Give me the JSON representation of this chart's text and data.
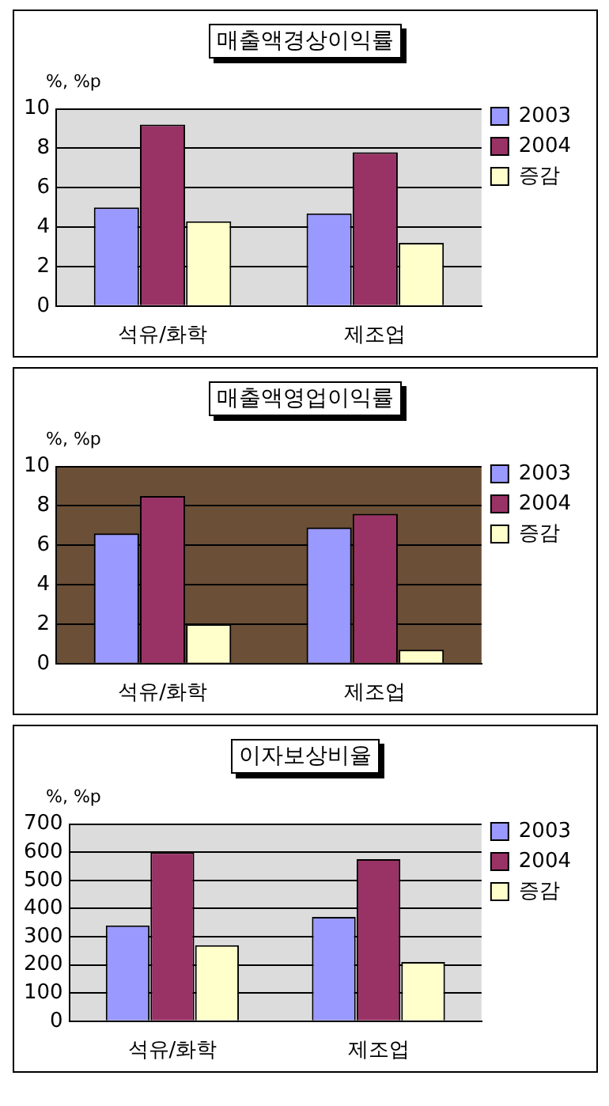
{
  "chart_data": [
    {
      "type": "bar",
      "title": "매출액경상이익률",
      "ylabel": "%, %p",
      "categories": [
        "석유/화학",
        "제조업"
      ],
      "series": [
        {
          "name": "2003",
          "color": "#9999ff",
          "values": [
            5.0,
            4.7
          ]
        },
        {
          "name": "2004",
          "color": "#993366",
          "values": [
            9.2,
            7.8
          ]
        },
        {
          "name": "증감",
          "color": "#ffffcc",
          "values": [
            4.3,
            3.2
          ]
        }
      ],
      "ylim": [
        0,
        10
      ],
      "yticks": [
        0,
        2,
        4,
        6,
        8,
        10
      ],
      "grid": "y",
      "legend": "top right"
    },
    {
      "type": "bar",
      "title": "매출액영업이익률",
      "ylabel": "%, %p",
      "categories": [
        "석유/화학",
        "제조업"
      ],
      "series": [
        {
          "name": "2003",
          "color": "#9999ff",
          "values": [
            6.6,
            6.9
          ]
        },
        {
          "name": "2004",
          "color": "#993366",
          "values": [
            8.5,
            7.6
          ]
        },
        {
          "name": "증감",
          "color": "#ffffcc",
          "values": [
            2.0,
            0.7
          ]
        }
      ],
      "ylim": [
        0,
        10
      ],
      "yticks": [
        0,
        2,
        4,
        6,
        8,
        10
      ],
      "grid": "y",
      "legend": "top right"
    },
    {
      "type": "bar",
      "title": "이자보상비율",
      "ylabel": "%, %p",
      "categories": [
        "석유/화학",
        "제조업"
      ],
      "series": [
        {
          "name": "2003",
          "color": "#9999ff",
          "values": [
            340,
            370
          ]
        },
        {
          "name": "2004",
          "color": "#993366",
          "values": [
            600,
            575
          ]
        },
        {
          "name": "증감",
          "color": "#ffffcc",
          "values": [
            270,
            210
          ]
        }
      ],
      "ylim": [
        0,
        700
      ],
      "yticks": [
        0,
        100,
        200,
        300,
        400,
        500,
        600,
        700
      ],
      "grid": "y",
      "legend": "top right"
    }
  ]
}
